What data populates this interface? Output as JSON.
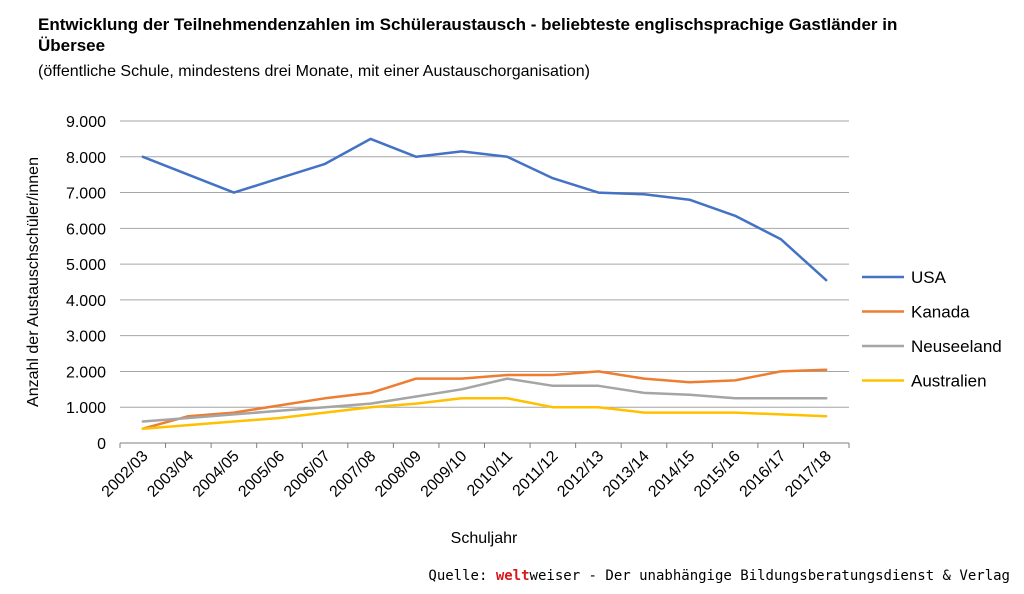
{
  "chart_data": {
    "type": "line",
    "title": "Entwicklung der Teilnehmendenzahlen im Schüleraustausch - beliebteste englischsprachige Gastländer in Übersee",
    "subtitle": "(öffentliche Schule, mindestens drei Monate, mit einer Austauschorganisation)",
    "xlabel": "Schuljahr",
    "ylabel": "Anzahl der Austauschschüler/innen",
    "ylim": [
      0,
      9000
    ],
    "yticks": [
      0,
      1000,
      2000,
      3000,
      4000,
      5000,
      6000,
      7000,
      8000,
      9000
    ],
    "ytick_labels": [
      "0",
      "1.000",
      "2.000",
      "3.000",
      "4.000",
      "5.000",
      "6.000",
      "7.000",
      "8.000",
      "9.000"
    ],
    "grid": "horizontal",
    "legend_position": "right",
    "categories": [
      "2002/03",
      "2003/04",
      "2004/05",
      "2005/06",
      "2006/07",
      "2007/08",
      "2008/09",
      "2009/10",
      "2010/11",
      "2011/12",
      "2012/13",
      "2013/14",
      "2014/15",
      "2015/16",
      "2016/17",
      "2017/18"
    ],
    "series": [
      {
        "name": "USA",
        "color": "#4472c4",
        "values": [
          8000,
          7500,
          7000,
          7400,
          7800,
          8500,
          8000,
          8150,
          8000,
          7400,
          7000,
          6950,
          6800,
          6350,
          5700,
          4550
        ]
      },
      {
        "name": "Kanada",
        "color": "#ed7d31",
        "values": [
          400,
          750,
          850,
          1050,
          1250,
          1400,
          1800,
          1800,
          1900,
          1900,
          2000,
          1800,
          1700,
          1750,
          2000,
          2050
        ]
      },
      {
        "name": "Neuseeland",
        "color": "#a5a5a5",
        "values": [
          600,
          700,
          800,
          900,
          1000,
          1100,
          1300,
          1500,
          1800,
          1600,
          1600,
          1400,
          1350,
          1250,
          1250,
          1250
        ]
      },
      {
        "name": "Australien",
        "color": "#ffc000",
        "values": [
          400,
          500,
          600,
          700,
          850,
          1000,
          1100,
          1250,
          1250,
          1000,
          1000,
          850,
          850,
          850,
          800,
          750
        ]
      }
    ]
  },
  "source": {
    "prefix": "Quelle: ",
    "brand_bold": "welt",
    "brand_rest": "weiser",
    "suffix": " - Der unabhängige Bildungsberatungsdienst & Verlag"
  }
}
